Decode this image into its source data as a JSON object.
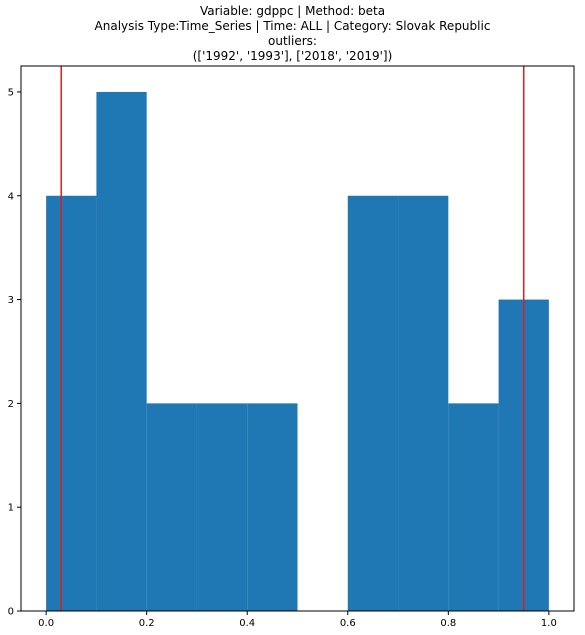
{
  "chart_data": {
    "type": "bar",
    "title_lines": [
      "Variable: gdppc | Method: beta",
      "Analysis Type:Time_Series | Time: ALL | Category: Slovak Republic",
      "outliers:",
      "(['1992', '1993'], ['2018', '2019'])"
    ],
    "bins": [
      {
        "x0": 0.0,
        "x1": 0.1,
        "count": 4
      },
      {
        "x0": 0.1,
        "x1": 0.2,
        "count": 5
      },
      {
        "x0": 0.2,
        "x1": 0.3,
        "count": 2
      },
      {
        "x0": 0.3,
        "x1": 0.4,
        "count": 2
      },
      {
        "x0": 0.4,
        "x1": 0.5,
        "count": 2
      },
      {
        "x0": 0.5,
        "x1": 0.6,
        "count": 0
      },
      {
        "x0": 0.6,
        "x1": 0.7,
        "count": 4
      },
      {
        "x0": 0.7,
        "x1": 0.8,
        "count": 4
      },
      {
        "x0": 0.8,
        "x1": 0.9,
        "count": 2
      },
      {
        "x0": 0.9,
        "x1": 1.0,
        "count": 3
      }
    ],
    "vertical_lines": [
      0.03,
      0.95
    ],
    "xlim": [
      -0.05,
      1.05
    ],
    "ylim": [
      0,
      5.25
    ],
    "xticks": [
      "0.0",
      "0.2",
      "0.4",
      "0.6",
      "0.8",
      "1.0"
    ],
    "yticks": [
      "0",
      "1",
      "2",
      "3",
      "4",
      "5"
    ],
    "bar_color": "#1f77b4",
    "line_color": "#e41a1c",
    "grid": false,
    "xlabel": "",
    "ylabel": ""
  }
}
